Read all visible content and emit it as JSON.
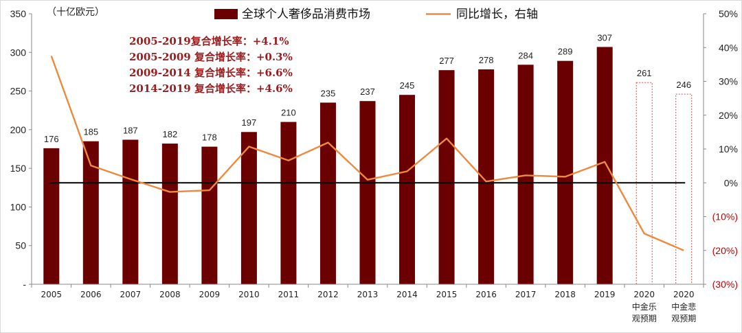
{
  "chart_data": {
    "type": "bar",
    "unit_label": "（十亿欧元）",
    "categories": [
      "2005",
      "2006",
      "2007",
      "2008",
      "2009",
      "2010",
      "2011",
      "2012",
      "2013",
      "2014",
      "2015",
      "2016",
      "2017",
      "2018",
      "2019",
      "2020",
      "2020"
    ],
    "category_sublabels": [
      "",
      "",
      "",
      "",
      "",
      "",
      "",
      "",
      "",
      "",
      "",
      "",
      "",
      "",
      "",
      "中金乐\n观预期",
      "中金悲\n观预期"
    ],
    "series": [
      {
        "name": "全球个人奢侈品消费市场",
        "type": "bar",
        "axis": "left",
        "color": "#6b0000",
        "values": [
          176,
          185,
          187,
          182,
          178,
          197,
          210,
          235,
          237,
          245,
          277,
          278,
          284,
          289,
          307,
          261,
          246
        ],
        "forecast": [
          false,
          false,
          false,
          false,
          false,
          false,
          false,
          false,
          false,
          false,
          false,
          false,
          false,
          false,
          false,
          true,
          true
        ]
      },
      {
        "name": "同比增长，右轴",
        "type": "line",
        "axis": "right",
        "color": "#ed8a3f",
        "values": [
          37.5,
          5.1,
          1.1,
          -2.7,
          -2.2,
          10.7,
          6.6,
          11.9,
          0.9,
          3.4,
          13.1,
          0.4,
          2.2,
          1.8,
          6.2,
          -15.0,
          -20.0
        ]
      }
    ],
    "y_left": {
      "range": [
        0,
        350
      ],
      "ticks": [
        0,
        50,
        100,
        150,
        200,
        250,
        300,
        350
      ],
      "tick_labels": [
        "-",
        "50",
        "100",
        "150",
        "200",
        "250",
        "300",
        "350"
      ]
    },
    "y_right": {
      "range": [
        -30,
        50
      ],
      "ticks": [
        -30,
        -20,
        -10,
        0,
        10,
        20,
        30,
        40,
        50
      ],
      "tick_labels": [
        "(30%)",
        "(20%)",
        "(10%)",
        "0%",
        "10%",
        "20%",
        "30%",
        "40%",
        "50%"
      ],
      "negative_color": "#c00000"
    },
    "zero_line": true,
    "grid": false,
    "legend_position": "top",
    "annotations": [
      "2005-2019复合增长率：+4.1%",
      "2005-2009 复合增长率：+0.3%",
      "2009-2014 复合增长率：+6.6%",
      "2014-2019 复合增长率：+4.6%"
    ]
  }
}
